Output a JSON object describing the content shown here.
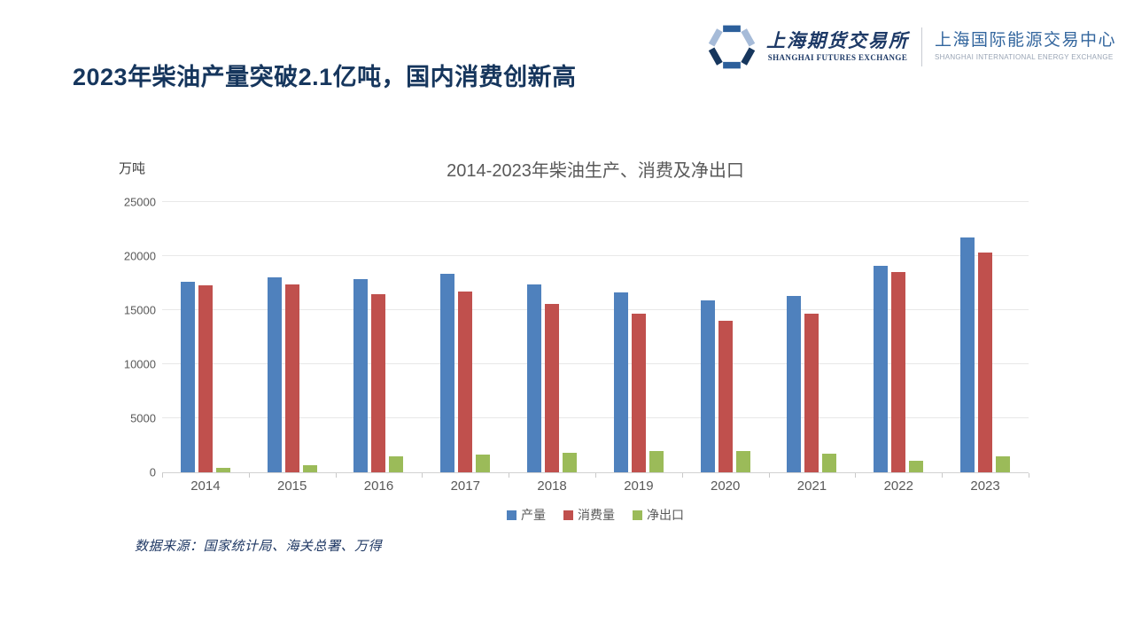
{
  "slide": {
    "title": "2023年柴油产量突破2.1亿吨，国内消费创新高",
    "source": "数据来源：国家统计局、海关总署、万得"
  },
  "logo": {
    "sfe_cn": "上海期货交易所",
    "sfe_en": "SHANGHAI FUTURES EXCHANGE",
    "ine_cn": "上海国际能源交易中心",
    "ine_en": "SHANGHAI INTERNATIONAL ENERGY EXCHANGE"
  },
  "colors": {
    "title_navy": "#16365D",
    "production_blue": "#4F81BD",
    "consumption_red": "#C0504D",
    "net_export_green": "#9BBB59",
    "gridline_gray": "#E8E8E8",
    "axis_text_gray": "#595959"
  },
  "chart_data": {
    "type": "bar",
    "title": "2014-2023年柴油生产、消费及净出口",
    "unit_label": "万吨",
    "categories": [
      "2014",
      "2015",
      "2016",
      "2017",
      "2018",
      "2019",
      "2020",
      "2021",
      "2022",
      "2023"
    ],
    "series": [
      {
        "name": "产量",
        "color": "#4F81BD",
        "values": [
          17650,
          18000,
          17900,
          18350,
          17400,
          16650,
          15900,
          16350,
          19100,
          21700
        ]
      },
      {
        "name": "消费量",
        "color": "#C0504D",
        "values": [
          17300,
          17350,
          16500,
          16700,
          15600,
          14650,
          14050,
          14700,
          18500,
          20350
        ]
      },
      {
        "name": "净出口",
        "color": "#9BBB59",
        "values": [
          400,
          650,
          1450,
          1600,
          1800,
          2000,
          1950,
          1700,
          1050,
          1450
        ]
      }
    ],
    "ylim": [
      0,
      25000
    ],
    "yticks": [
      0,
      5000,
      10000,
      15000,
      20000,
      25000
    ],
    "grid": true,
    "legend_position": "bottom"
  }
}
